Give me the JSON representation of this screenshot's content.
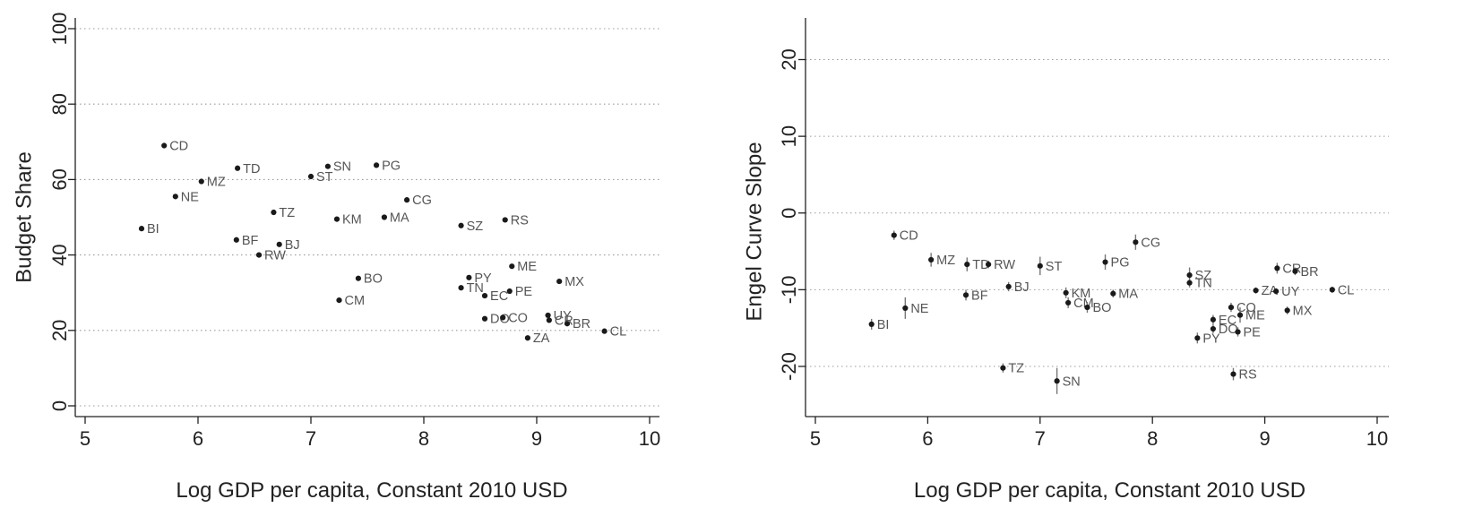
{
  "chart_data": [
    {
      "type": "scatter",
      "xlabel": "Log GDP per capita, Constant 2010 USD",
      "ylabel": "Budget Share",
      "xlim": [
        5,
        10
      ],
      "ylim": [
        0,
        100
      ],
      "xticks": [
        "5",
        "6",
        "7",
        "8",
        "9",
        "10"
      ],
      "yticks": [
        "0",
        "20",
        "40",
        "60",
        "80",
        "100"
      ],
      "grid": "horizontal dotted",
      "points": [
        {
          "label": "BI",
          "x": 5.5,
          "y": 47
        },
        {
          "label": "CD",
          "x": 5.7,
          "y": 69
        },
        {
          "label": "NE",
          "x": 5.8,
          "y": 55.5
        },
        {
          "label": "MZ",
          "x": 6.03,
          "y": 59.5
        },
        {
          "label": "TD",
          "x": 6.35,
          "y": 63
        },
        {
          "label": "BF",
          "x": 6.34,
          "y": 44
        },
        {
          "label": "RW",
          "x": 6.54,
          "y": 40
        },
        {
          "label": "TZ",
          "x": 6.67,
          "y": 51.3
        },
        {
          "label": "BJ",
          "x": 6.72,
          "y": 42.8
        },
        {
          "label": "ST",
          "x": 7.0,
          "y": 60.8
        },
        {
          "label": "SN",
          "x": 7.15,
          "y": 63.5
        },
        {
          "label": "KM",
          "x": 7.23,
          "y": 49.5
        },
        {
          "label": "CM",
          "x": 7.25,
          "y": 28
        },
        {
          "label": "BO",
          "x": 7.42,
          "y": 33.8
        },
        {
          "label": "PG",
          "x": 7.58,
          "y": 63.8
        },
        {
          "label": "MA",
          "x": 7.65,
          "y": 50
        },
        {
          "label": "CG",
          "x": 7.85,
          "y": 54.6
        },
        {
          "label": "SZ",
          "x": 8.33,
          "y": 47.8
        },
        {
          "label": "TN",
          "x": 8.33,
          "y": 31.3
        },
        {
          "label": "PY",
          "x": 8.4,
          "y": 34
        },
        {
          "label": "EC",
          "x": 8.54,
          "y": 29.2
        },
        {
          "label": "DO",
          "x": 8.54,
          "y": 23.1
        },
        {
          "label": "CO",
          "x": 8.7,
          "y": 23.4
        },
        {
          "label": "RS",
          "x": 8.72,
          "y": 49.3
        },
        {
          "label": "PE",
          "x": 8.76,
          "y": 30.4
        },
        {
          "label": "ME",
          "x": 8.78,
          "y": 37
        },
        {
          "label": "ZA",
          "x": 8.92,
          "y": 18
        },
        {
          "label": "UY",
          "x": 9.1,
          "y": 24
        },
        {
          "label": "CR",
          "x": 9.11,
          "y": 22.7
        },
        {
          "label": "MX",
          "x": 9.2,
          "y": 33
        },
        {
          "label": "BR",
          "x": 9.27,
          "y": 21.8
        },
        {
          "label": "CL",
          "x": 9.6,
          "y": 19.8
        }
      ]
    },
    {
      "type": "scatter",
      "xlabel": "Log GDP per capita, Constant 2010 USD",
      "ylabel": "Engel Curve Slope",
      "xlim": [
        5,
        10
      ],
      "ylim": [
        -26,
        25
      ],
      "xticks": [
        "5",
        "6",
        "7",
        "8",
        "9",
        "10"
      ],
      "yticks": [
        "-20",
        "-10",
        "0",
        "10",
        "20"
      ],
      "grid": "horizontal dotted",
      "error_bars": "vertical confidence intervals",
      "points": [
        {
          "label": "BI",
          "x": 5.5,
          "y": -14.5,
          "lo": -15.2,
          "hi": -13.8
        },
        {
          "label": "CD",
          "x": 5.7,
          "y": -2.9,
          "lo": -3.5,
          "hi": -2.3
        },
        {
          "label": "NE",
          "x": 5.8,
          "y": -12.4,
          "lo": -13.8,
          "hi": -11
        },
        {
          "label": "MZ",
          "x": 6.03,
          "y": -6.1,
          "lo": -7,
          "hi": -5.2
        },
        {
          "label": "TD",
          "x": 6.35,
          "y": -6.7,
          "lo": -7.6,
          "hi": -5.8
        },
        {
          "label": "RW",
          "x": 6.54,
          "y": -6.7,
          "lo": -7.2,
          "hi": -6.2
        },
        {
          "label": "BF",
          "x": 6.34,
          "y": -10.7,
          "lo": -11.4,
          "hi": -10
        },
        {
          "label": "BJ",
          "x": 6.72,
          "y": -9.6,
          "lo": -10.2,
          "hi": -9
        },
        {
          "label": "TZ",
          "x": 6.67,
          "y": -20.2,
          "lo": -20.8,
          "hi": -19.6
        },
        {
          "label": "ST",
          "x": 7.0,
          "y": -6.9,
          "lo": -8.1,
          "hi": -5.7
        },
        {
          "label": "SN",
          "x": 7.15,
          "y": -21.9,
          "lo": -23.6,
          "hi": -20.2
        },
        {
          "label": "KM",
          "x": 7.23,
          "y": -10.4,
          "lo": -11.1,
          "hi": -9.7
        },
        {
          "label": "CM",
          "x": 7.25,
          "y": -11.7,
          "lo": -12.4,
          "hi": -11
        },
        {
          "label": "BO",
          "x": 7.42,
          "y": -12.3,
          "lo": -13,
          "hi": -11.6
        },
        {
          "label": "MA",
          "x": 7.65,
          "y": -10.5,
          "lo": -11,
          "hi": -10
        },
        {
          "label": "PG",
          "x": 7.58,
          "y": -6.4,
          "lo": -7.4,
          "hi": -5.4
        },
        {
          "label": "CG",
          "x": 7.85,
          "y": -3.8,
          "lo": -4.8,
          "hi": -2.8
        },
        {
          "label": "SZ",
          "x": 8.33,
          "y": -8.1,
          "lo": -9.1,
          "hi": -7.1
        },
        {
          "label": "TN",
          "x": 8.33,
          "y": -9.1,
          "lo": -9.7,
          "hi": -8.5
        },
        {
          "label": "PY",
          "x": 8.4,
          "y": -16.3,
          "lo": -17,
          "hi": -15.6
        },
        {
          "label": "EC",
          "x": 8.54,
          "y": -13.9,
          "lo": -14.5,
          "hi": -13.3
        },
        {
          "label": "DO",
          "x": 8.54,
          "y": -15.1,
          "lo": -15.7,
          "hi": -14.5
        },
        {
          "label": "CO",
          "x": 8.7,
          "y": -12.3,
          "lo": -12.9,
          "hi": -11.7
        },
        {
          "label": "ME",
          "x": 8.78,
          "y": -13.3,
          "lo": -14.3,
          "hi": -12.3
        },
        {
          "label": "PE",
          "x": 8.76,
          "y": -15.5,
          "lo": -16.1,
          "hi": -14.9
        },
        {
          "label": "RS",
          "x": 8.72,
          "y": -21,
          "lo": -21.8,
          "hi": -20.2
        },
        {
          "label": "ZA",
          "x": 8.92,
          "y": -10.1,
          "lo": -10.5,
          "hi": -9.7
        },
        {
          "label": "UY",
          "x": 9.1,
          "y": -10.2,
          "lo": -10.6,
          "hi": -9.8
        },
        {
          "label": "CR",
          "x": 9.11,
          "y": -7.2,
          "lo": -7.9,
          "hi": -6.5
        },
        {
          "label": "BR",
          "x": 9.27,
          "y": -7.6,
          "lo": -8.1,
          "hi": -7.1
        },
        {
          "label": "MX",
          "x": 9.2,
          "y": -12.7,
          "lo": -13.2,
          "hi": -12.2
        },
        {
          "label": "CL",
          "x": 9.6,
          "y": -10,
          "lo": -10.4,
          "hi": -9.6
        }
      ]
    }
  ]
}
